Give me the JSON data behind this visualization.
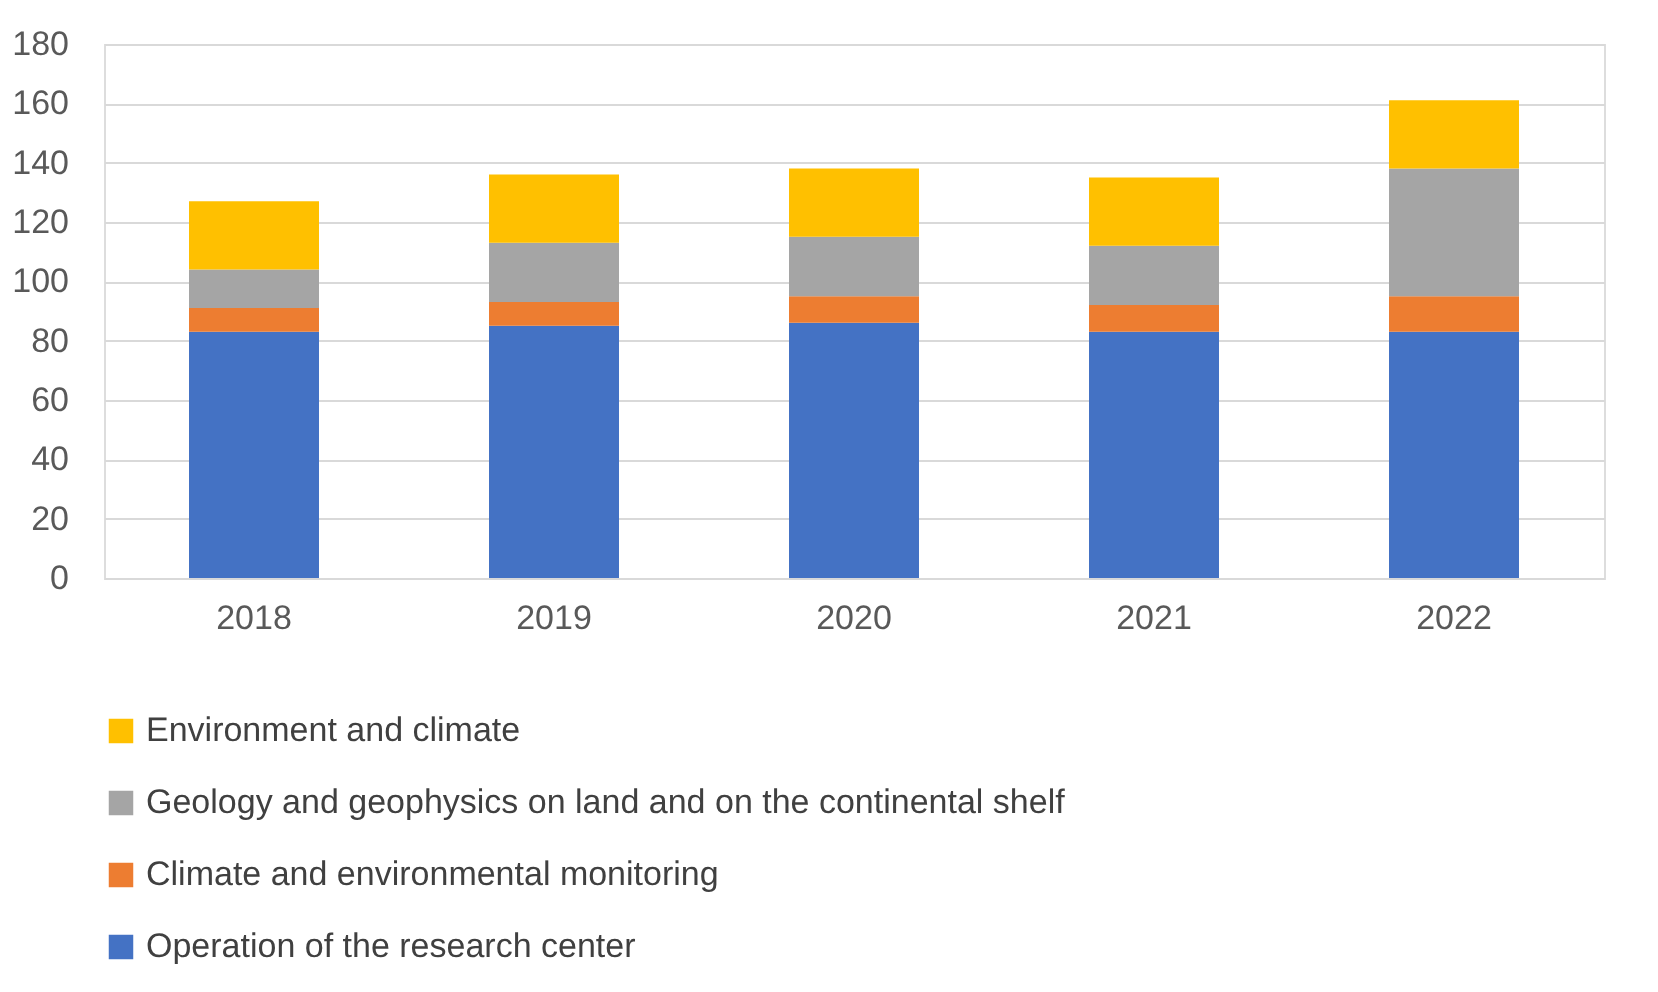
{
  "chart_data": {
    "type": "bar",
    "stacked": true,
    "categories": [
      "2018",
      "2019",
      "2020",
      "2021",
      "2022"
    ],
    "series": [
      {
        "name": "Operation of the research center",
        "color": "#4472c4",
        "values": [
          83,
          85,
          86,
          83,
          83
        ]
      },
      {
        "name": "Climate and environmental monitoring",
        "color": "#ed7d31",
        "values": [
          8,
          8,
          9,
          9,
          12
        ]
      },
      {
        "name": "Geology and geophysics on land and on the continental shelf",
        "color": "#a5a5a5",
        "values": [
          13,
          20,
          20,
          20,
          43
        ]
      },
      {
        "name": "Environment and climate",
        "color": "#ffc000",
        "values": [
          23,
          23,
          23,
          23,
          23
        ]
      }
    ],
    "ylim": [
      0,
      180
    ],
    "yticks": [
      0,
      20,
      40,
      60,
      80,
      100,
      120,
      140,
      160,
      180
    ],
    "grid": "y",
    "legend": "bottom"
  }
}
